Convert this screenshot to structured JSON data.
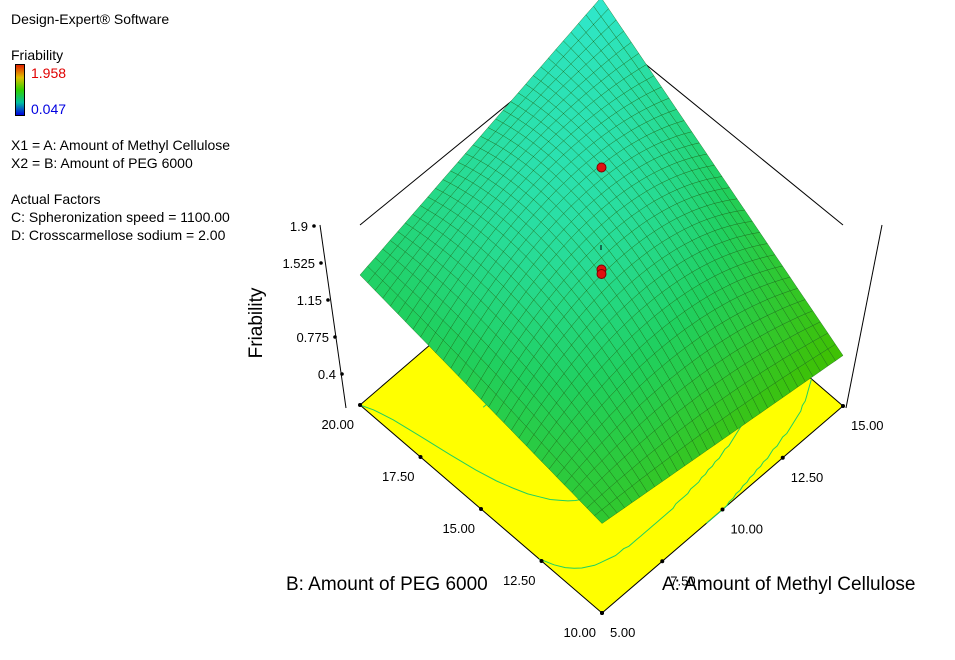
{
  "app_title": "Design-Expert® Software",
  "legend": {
    "title": "Friability",
    "high": "1.958",
    "low": "0.047",
    "high_color": "#e00000",
    "low_color": "#0000e0"
  },
  "factors": {
    "x1": "X1 = A: Amount of Methyl Cellulose",
    "x2": "X2 = B: Amount of PEG 6000",
    "actual_title": "Actual Factors",
    "c": "C: Spheronization speed = 1100.00",
    "d": "D: Crosscarmellose sodium  = 2.00"
  },
  "chart_data": {
    "type": "surface3d",
    "zlabel": "Friability",
    "xlabel": "A: Amount of Methyl Cellulose",
    "ylabel": "B: Amount of PEG 6000",
    "x_ticks": [
      "5.00",
      "7.50",
      "10.00",
      "12.50",
      "15.00"
    ],
    "y_ticks": [
      "10.00",
      "12.50",
      "15.00",
      "17.50",
      "20.00"
    ],
    "z_ticks": [
      "0.4",
      "0.775",
      "1.15",
      "1.525",
      "1.9"
    ],
    "xlim": [
      5,
      15
    ],
    "ylim": [
      10,
      20
    ],
    "zlim": [
      0.4,
      1.9
    ],
    "surface_corners": {
      "a5_b10": 0.73,
      "a15_b10": 0.47,
      "a5_b20": 1.0,
      "a15_b20": 1.47,
      "a10_b15": 1.23
    },
    "design_points": [
      {
        "a": 10,
        "b": 15,
        "friability": 1.72
      },
      {
        "a": 10,
        "b": 15,
        "friability": 1.04
      },
      {
        "a": 10,
        "b": 15,
        "friability": 1.01
      }
    ],
    "surface_colors": {
      "low": "#00d040",
      "high": "#30e0c0",
      "mid": "#40e040"
    },
    "floor_color": "#ffff00",
    "contour_color": "#20d060"
  }
}
